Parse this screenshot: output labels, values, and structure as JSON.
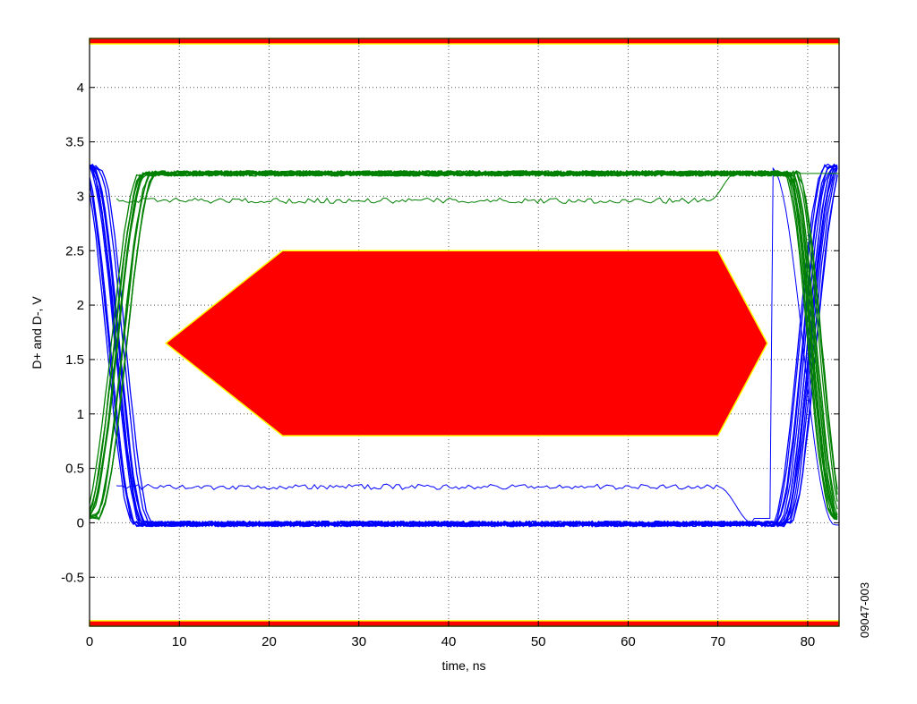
{
  "chart_data": {
    "type": "line",
    "title": "",
    "xlabel": "time, ns",
    "ylabel": "D+ and D-, V",
    "xlim": [
      0,
      83.5
    ],
    "ylim": [
      -0.95,
      4.45
    ],
    "x_ticks": [
      0,
      10,
      20,
      30,
      40,
      50,
      60,
      70,
      80
    ],
    "y_ticks": [
      -0.5,
      0,
      0.5,
      1,
      1.5,
      2,
      2.5,
      3,
      3.5,
      4
    ],
    "x_tick_labels": [
      "0",
      "10",
      "20",
      "30",
      "40",
      "50",
      "60",
      "70",
      "80"
    ],
    "y_tick_labels": [
      "-0.5",
      "0",
      "0.5",
      "1",
      "1.5",
      "2",
      "2.5",
      "3",
      "3.5",
      "4"
    ],
    "grid": true,
    "legend": "none",
    "figure_id": "09047-003",
    "eye_mask": {
      "color": "#ff0000",
      "edge_color": "#ffff00",
      "hexagon": [
        [
          8.5,
          1.65
        ],
        [
          21.5,
          2.5
        ],
        [
          70,
          2.5
        ],
        [
          75.5,
          1.65
        ],
        [
          70,
          0.8
        ],
        [
          21.5,
          0.8
        ]
      ],
      "upper_bar": [
        4.4,
        4.45
      ],
      "lower_bar": [
        -0.95,
        -0.9
      ]
    },
    "series": [
      {
        "color": "#0000ff",
        "high_level": 3.27,
        "low_level": -0.01,
        "rise_start": 77,
        "rise_end": 83,
        "fall_start": 0,
        "fall_end": 6,
        "partial_level": 0.33,
        "traces": 14
      },
      {
        "color": "#008000",
        "high_level": 3.21,
        "low_level": 0.05,
        "rise_start": 0,
        "rise_end": 6.5,
        "fall_start": 78,
        "fall_end": 83.5,
        "partial_level": 2.96,
        "traces": 14
      }
    ]
  }
}
